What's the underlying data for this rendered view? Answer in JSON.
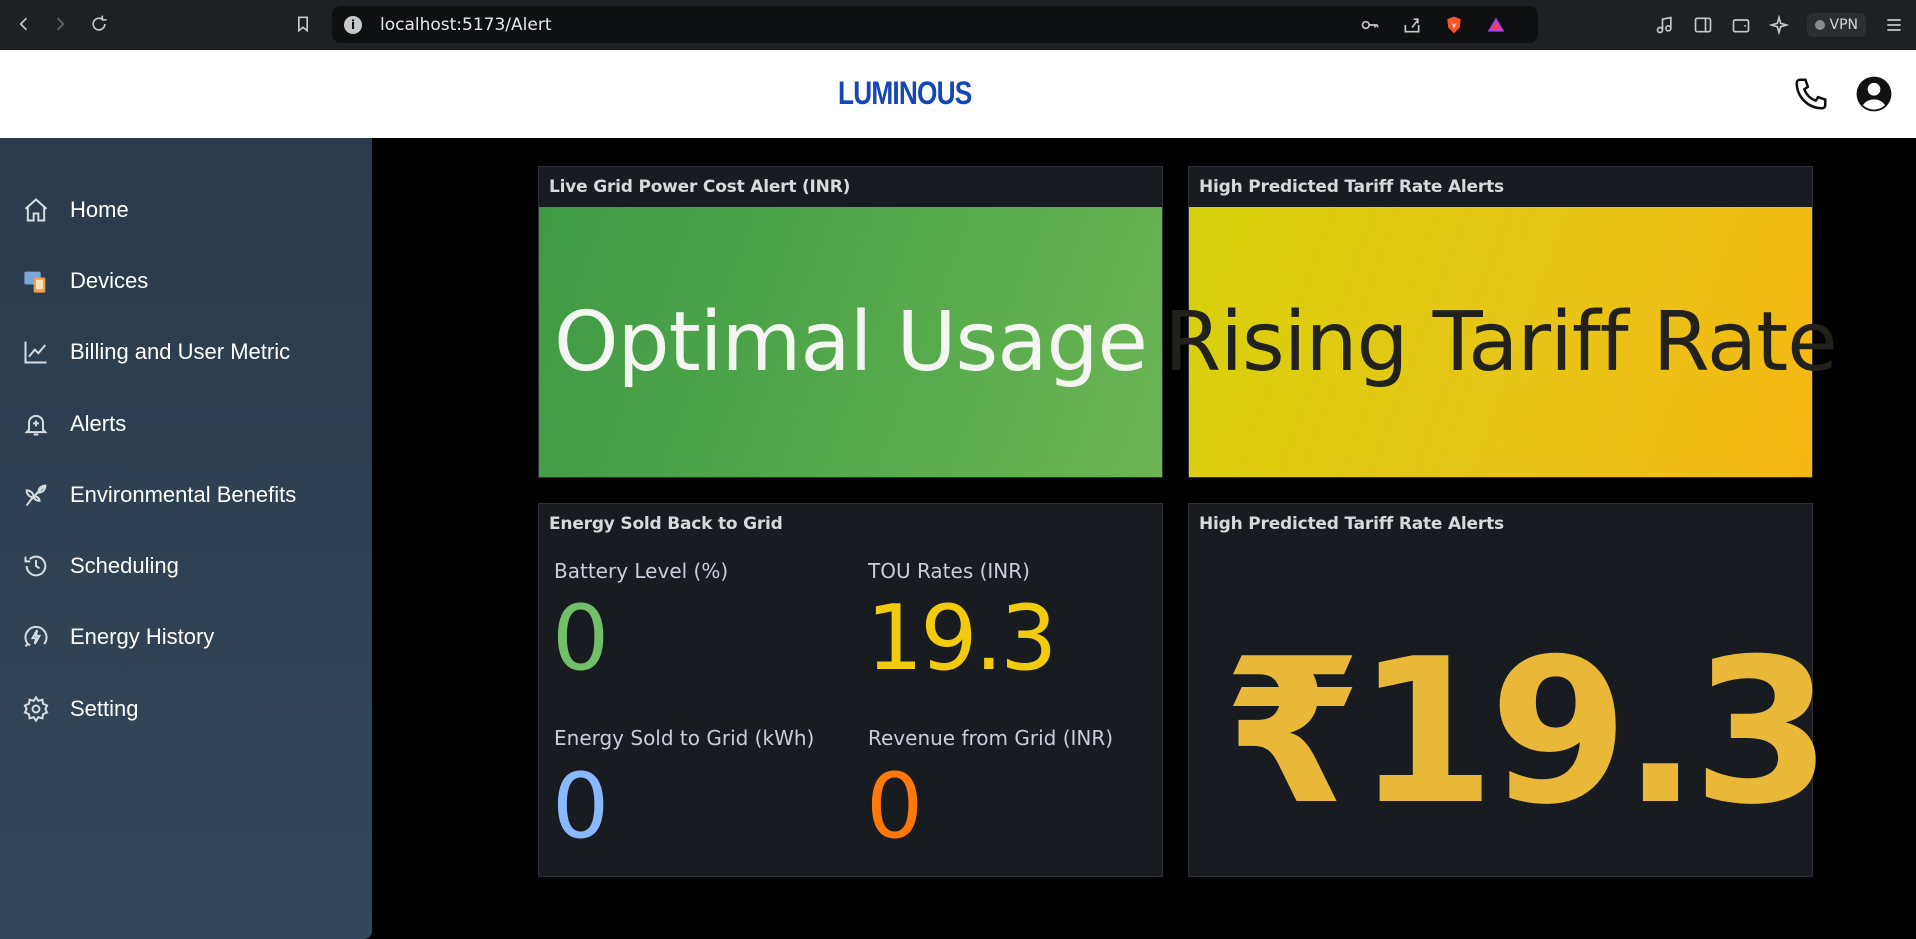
{
  "browser": {
    "url": "localhost:5173/Alert",
    "vpn_label": "VPN"
  },
  "header": {
    "logo": "LUMINOUS"
  },
  "sidebar": {
    "items": [
      {
        "label": "Home",
        "icon": "home-icon"
      },
      {
        "label": "Devices",
        "icon": "devices-icon"
      },
      {
        "label": "Billing and User Metric",
        "icon": "chart-line-icon"
      },
      {
        "label": "Alerts",
        "icon": "bell-icon"
      },
      {
        "label": "Environmental Benefits",
        "icon": "leaf-icon"
      },
      {
        "label": "Scheduling",
        "icon": "history-icon"
      },
      {
        "label": "Energy History",
        "icon": "energy-icon"
      },
      {
        "label": "Setting",
        "icon": "gear-icon"
      }
    ]
  },
  "panels": {
    "grid_cost": {
      "title": "Live Grid Power Cost Alert (INR)",
      "value": "Optimal Usage",
      "color": "#52a84a"
    },
    "tariff_alert": {
      "title": "High Predicted Tariff Rate Alerts",
      "value": "Rising Tariff Rate",
      "color": "#e6c617"
    },
    "energy_sold": {
      "title": "Energy Sold Back to Grid",
      "stats": [
        {
          "label": "Battery Level (%)",
          "value": "0",
          "color": "#73bf69"
        },
        {
          "label": "TOU Rates (INR)",
          "value": "19.3",
          "color": "#f2cc0c"
        },
        {
          "label": "Energy Sold to Grid (kWh)",
          "value": "0",
          "color": "#8ab8ff"
        },
        {
          "label": "Revenue from Grid (INR)",
          "value": "0",
          "color": "#ff780a"
        }
      ]
    },
    "tariff_value": {
      "title": "High Predicted Tariff Rate Alerts",
      "value": "₹19.3",
      "color": "#eab839"
    }
  }
}
